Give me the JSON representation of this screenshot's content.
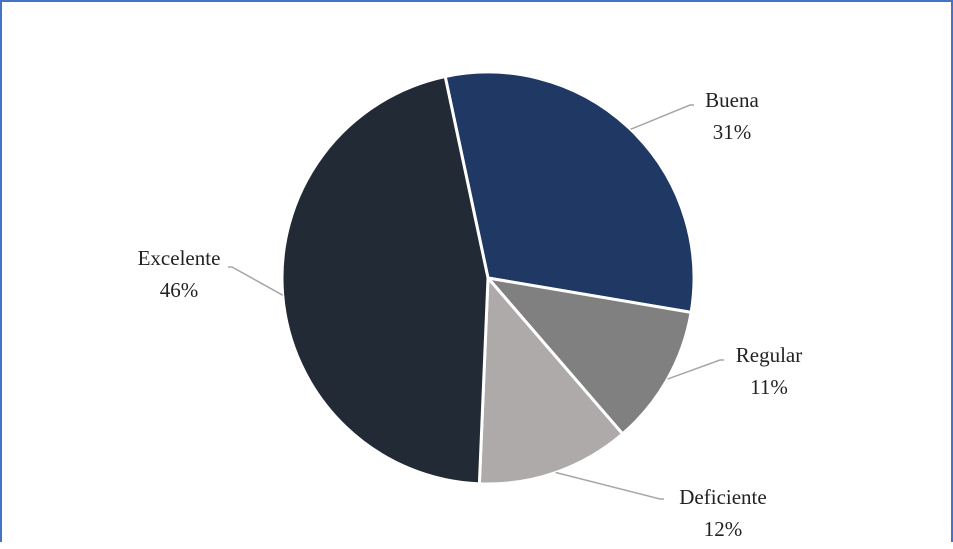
{
  "chart_data": {
    "type": "pie",
    "title": "",
    "slices": [
      {
        "label": "Buena",
        "value": 31,
        "value_label": "31%",
        "color": "#1F3864"
      },
      {
        "label": "Regular",
        "value": 11,
        "value_label": "11%",
        "color": "#808080"
      },
      {
        "label": "Deficiente",
        "value": 12,
        "value_label": "12%",
        "color": "#AEAAAA"
      },
      {
        "label": "Excelente",
        "value": 46,
        "value_label": "46%",
        "color": "#222A35"
      }
    ],
    "slice_border_color": "#FFFFFF",
    "leader_line_color": "#A6A6A6",
    "legend": "none",
    "data_labels": "outside with leader lines"
  }
}
